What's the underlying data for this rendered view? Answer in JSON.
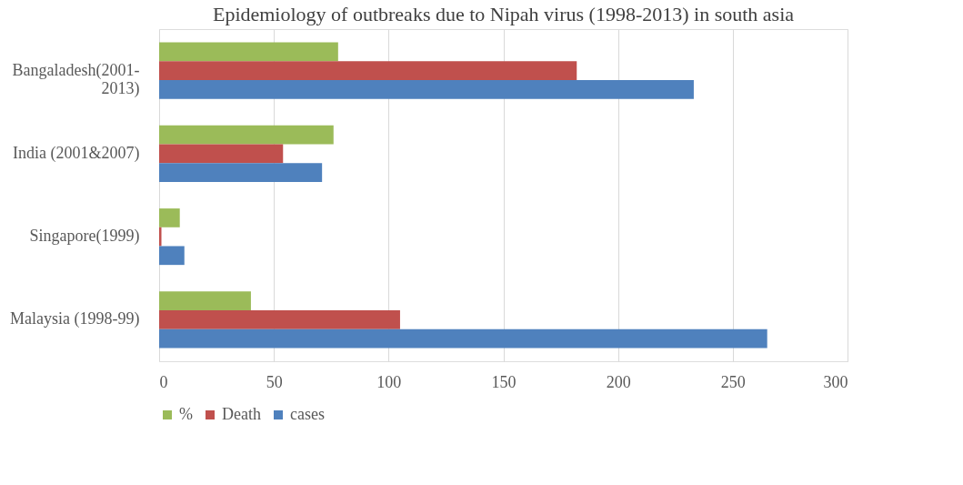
{
  "chart_data": {
    "type": "bar",
    "orientation": "horizontal",
    "title": "Epidemiology of outbreaks due to Nipah virus (1998-2013) in south asia",
    "categories": [
      "Bangaladesh(2001-2013)",
      "India (2001&2007)",
      "Singapore(1999)",
      "Malaysia (1998-99)"
    ],
    "series": [
      {
        "name": "%",
        "color": "#9bbb59",
        "values": [
          78,
          76,
          9,
          40
        ]
      },
      {
        "name": "Death",
        "color": "#c0504d",
        "values": [
          182,
          54,
          1,
          105
        ]
      },
      {
        "name": "cases",
        "color": "#4f81bd",
        "values": [
          233,
          71,
          11,
          265
        ]
      }
    ],
    "xlim": [
      0,
      300
    ],
    "xticks": [
      0,
      50,
      100,
      150,
      200,
      250,
      300
    ],
    "grid": "x",
    "legend": "bottom"
  }
}
